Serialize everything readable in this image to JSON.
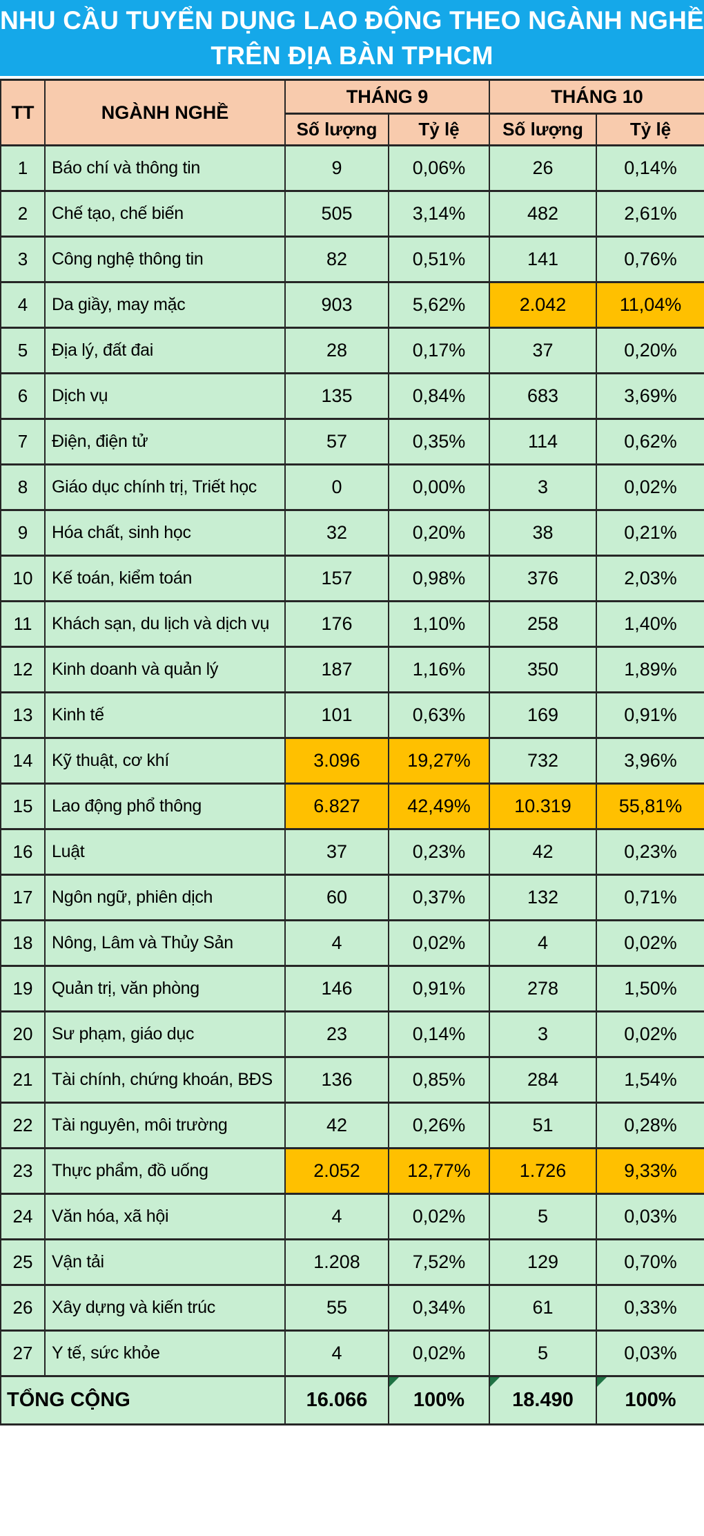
{
  "title": {
    "line1": "NHU CẦU TUYỂN DỤNG LAO ĐỘNG THEO NGÀNH NGHỀ",
    "line2": "TRÊN ĐỊA BÀN TPHCM"
  },
  "colors": {
    "title_bg": "#15A8E9",
    "title_text": "#FFFFFF",
    "header_bg": "#F8CBAD",
    "cell_bg": "#C8EED2",
    "highlight_bg": "#FFC000",
    "border": "#262626",
    "flag_triangle": "#1F7244"
  },
  "table": {
    "headers": {
      "tt": "TT",
      "industry": "NGÀNH NGHỀ",
      "month9": "THÁNG 9",
      "month10": "THÁNG 10",
      "quantity": "Số lượng",
      "rate": "Tỷ lệ"
    },
    "rows": [
      {
        "tt": "1",
        "industry": "Báo chí và thông tin",
        "m9_qty": "9",
        "m9_rate": "0,06%",
        "m10_qty": "26",
        "m10_rate": "0,14%",
        "highlight": []
      },
      {
        "tt": "2",
        "industry": "Chế tạo, chế biến",
        "m9_qty": "505",
        "m9_rate": "3,14%",
        "m10_qty": "482",
        "m10_rate": "2,61%",
        "highlight": []
      },
      {
        "tt": "3",
        "industry": "Công nghệ thông tin",
        "m9_qty": "82",
        "m9_rate": "0,51%",
        "m10_qty": "141",
        "m10_rate": "0,76%",
        "highlight": []
      },
      {
        "tt": "4",
        "industry": "Da giầy, may mặc",
        "m9_qty": "903",
        "m9_rate": "5,62%",
        "m10_qty": "2.042",
        "m10_rate": "11,04%",
        "highlight": [
          "m10_qty",
          "m10_rate"
        ]
      },
      {
        "tt": "5",
        "industry": "Địa lý, đất đai",
        "m9_qty": "28",
        "m9_rate": "0,17%",
        "m10_qty": "37",
        "m10_rate": "0,20%",
        "highlight": []
      },
      {
        "tt": "6",
        "industry": "Dịch vụ",
        "m9_qty": "135",
        "m9_rate": "0,84%",
        "m10_qty": "683",
        "m10_rate": "3,69%",
        "highlight": []
      },
      {
        "tt": "7",
        "industry": "Điện, điện tử",
        "m9_qty": "57",
        "m9_rate": "0,35%",
        "m10_qty": "114",
        "m10_rate": "0,62%",
        "highlight": []
      },
      {
        "tt": "8",
        "industry": "Giáo dục chính trị, Triết học",
        "m9_qty": "0",
        "m9_rate": "0,00%",
        "m10_qty": "3",
        "m10_rate": "0,02%",
        "highlight": []
      },
      {
        "tt": "9",
        "industry": "Hóa chất, sinh học",
        "m9_qty": "32",
        "m9_rate": "0,20%",
        "m10_qty": "38",
        "m10_rate": "0,21%",
        "highlight": []
      },
      {
        "tt": "10",
        "industry": "Kế toán, kiểm toán",
        "m9_qty": "157",
        "m9_rate": "0,98%",
        "m10_qty": "376",
        "m10_rate": "2,03%",
        "highlight": []
      },
      {
        "tt": "11",
        "industry": "Khách sạn, du lịch và dịch vụ",
        "m9_qty": "176",
        "m9_rate": "1,10%",
        "m10_qty": "258",
        "m10_rate": "1,40%",
        "highlight": []
      },
      {
        "tt": "12",
        "industry": "Kinh doanh và quản lý",
        "m9_qty": "187",
        "m9_rate": "1,16%",
        "m10_qty": "350",
        "m10_rate": "1,89%",
        "highlight": []
      },
      {
        "tt": "13",
        "industry": "Kinh tế",
        "m9_qty": "101",
        "m9_rate": "0,63%",
        "m10_qty": "169",
        "m10_rate": "0,91%",
        "highlight": []
      },
      {
        "tt": "14",
        "industry": "Kỹ thuật, cơ khí",
        "m9_qty": "3.096",
        "m9_rate": "19,27%",
        "m10_qty": "732",
        "m10_rate": "3,96%",
        "highlight": [
          "m9_qty",
          "m9_rate"
        ]
      },
      {
        "tt": "15",
        "industry": "Lao động phổ thông",
        "m9_qty": "6.827",
        "m9_rate": "42,49%",
        "m10_qty": "10.319",
        "m10_rate": "55,81%",
        "highlight": [
          "m9_qty",
          "m9_rate",
          "m10_qty",
          "m10_rate"
        ]
      },
      {
        "tt": "16",
        "industry": "Luật",
        "m9_qty": "37",
        "m9_rate": "0,23%",
        "m10_qty": "42",
        "m10_rate": "0,23%",
        "highlight": []
      },
      {
        "tt": "17",
        "industry": "Ngôn ngữ, phiên dịch",
        "m9_qty": "60",
        "m9_rate": "0,37%",
        "m10_qty": "132",
        "m10_rate": "0,71%",
        "highlight": []
      },
      {
        "tt": "18",
        "industry": "Nông, Lâm và Thủy Sản",
        "m9_qty": "4",
        "m9_rate": "0,02%",
        "m10_qty": "4",
        "m10_rate": "0,02%",
        "highlight": []
      },
      {
        "tt": "19",
        "industry": "Quản trị, văn phòng",
        "m9_qty": "146",
        "m9_rate": "0,91%",
        "m10_qty": "278",
        "m10_rate": "1,50%",
        "highlight": []
      },
      {
        "tt": "20",
        "industry": "Sư phạm, giáo dục",
        "m9_qty": "23",
        "m9_rate": "0,14%",
        "m10_qty": "3",
        "m10_rate": "0,02%",
        "highlight": []
      },
      {
        "tt": "21",
        "industry": "Tài chính, chứng khoán, BĐS",
        "m9_qty": "136",
        "m9_rate": "0,85%",
        "m10_qty": "284",
        "m10_rate": "1,54%",
        "highlight": []
      },
      {
        "tt": "22",
        "industry": "Tài nguyên, môi trường",
        "m9_qty": "42",
        "m9_rate": "0,26%",
        "m10_qty": "51",
        "m10_rate": "0,28%",
        "highlight": []
      },
      {
        "tt": "23",
        "industry": "Thực phẩm, đồ uống",
        "m9_qty": "2.052",
        "m9_rate": "12,77%",
        "m10_qty": "1.726",
        "m10_rate": "9,33%",
        "highlight": [
          "m9_qty",
          "m9_rate",
          "m10_qty",
          "m10_rate"
        ]
      },
      {
        "tt": "24",
        "industry": "Văn hóa, xã hội",
        "m9_qty": "4",
        "m9_rate": "0,02%",
        "m10_qty": "5",
        "m10_rate": "0,03%",
        "highlight": []
      },
      {
        "tt": "25",
        "industry": "Vận tải",
        "m9_qty": "1.208",
        "m9_rate": "7,52%",
        "m10_qty": "129",
        "m10_rate": "0,70%",
        "highlight": []
      },
      {
        "tt": "26",
        "industry": "Xây dựng và kiến trúc",
        "m9_qty": "55",
        "m9_rate": "0,34%",
        "m10_qty": "61",
        "m10_rate": "0,33%",
        "highlight": []
      },
      {
        "tt": "27",
        "industry": "Y tế, sức khỏe",
        "m9_qty": "4",
        "m9_rate": "0,02%",
        "m10_qty": "5",
        "m10_rate": "0,03%",
        "highlight": []
      }
    ],
    "total": {
      "label": "TỔNG CỘNG",
      "m9_qty": "16.066",
      "m9_rate": "100%",
      "m10_qty": "18.490",
      "m10_rate": "100%",
      "flagged": [
        "m9_rate",
        "m10_qty",
        "m10_rate"
      ]
    }
  },
  "chart_data": {
    "type": "table",
    "title": "NHU CẦU TUYỂN DỤNG LAO ĐỘNG THEO NGÀNH NGHỀ TRÊN ĐỊA BÀN TPHCM",
    "columns": [
      "TT",
      "NGÀNH NGHỀ",
      "THÁNG 9 - Số lượng",
      "THÁNG 9 - Tỷ lệ (%)",
      "THÁNG 10 - Số lượng",
      "THÁNG 10 - Tỷ lệ (%)"
    ],
    "rows": [
      [
        1,
        "Báo chí và thông tin",
        9,
        0.06,
        26,
        0.14
      ],
      [
        2,
        "Chế tạo, chế biến",
        505,
        3.14,
        482,
        2.61
      ],
      [
        3,
        "Công nghệ thông tin",
        82,
        0.51,
        141,
        0.76
      ],
      [
        4,
        "Da giầy, may mặc",
        903,
        5.62,
        2042,
        11.04
      ],
      [
        5,
        "Địa lý, đất đai",
        28,
        0.17,
        37,
        0.2
      ],
      [
        6,
        "Dịch vụ",
        135,
        0.84,
        683,
        3.69
      ],
      [
        7,
        "Điện, điện tử",
        57,
        0.35,
        114,
        0.62
      ],
      [
        8,
        "Giáo dục chính trị, Triết học",
        0,
        0.0,
        3,
        0.02
      ],
      [
        9,
        "Hóa chất, sinh học",
        32,
        0.2,
        38,
        0.21
      ],
      [
        10,
        "Kế toán, kiểm toán",
        157,
        0.98,
        376,
        2.03
      ],
      [
        11,
        "Khách sạn, du lịch và dịch vụ",
        176,
        1.1,
        258,
        1.4
      ],
      [
        12,
        "Kinh doanh và quản lý",
        187,
        1.16,
        350,
        1.89
      ],
      [
        13,
        "Kinh tế",
        101,
        0.63,
        169,
        0.91
      ],
      [
        14,
        "Kỹ thuật, cơ khí",
        3096,
        19.27,
        732,
        3.96
      ],
      [
        15,
        "Lao động phổ thông",
        6827,
        42.49,
        10319,
        55.81
      ],
      [
        16,
        "Luật",
        37,
        0.23,
        42,
        0.23
      ],
      [
        17,
        "Ngôn ngữ, phiên dịch",
        60,
        0.37,
        132,
        0.71
      ],
      [
        18,
        "Nông, Lâm và Thủy Sản",
        4,
        0.02,
        4,
        0.02
      ],
      [
        19,
        "Quản trị, văn phòng",
        146,
        0.91,
        278,
        1.5
      ],
      [
        20,
        "Sư phạm, giáo dục",
        23,
        0.14,
        3,
        0.02
      ],
      [
        21,
        "Tài chính, chứng khoán, BĐS",
        136,
        0.85,
        284,
        1.54
      ],
      [
        22,
        "Tài nguyên, môi trường",
        42,
        0.26,
        51,
        0.28
      ],
      [
        23,
        "Thực phẩm, đồ uống",
        2052,
        12.77,
        1726,
        9.33
      ],
      [
        24,
        "Văn hóa, xã hội",
        4,
        0.02,
        5,
        0.03
      ],
      [
        25,
        "Vận tải",
        1208,
        7.52,
        129,
        0.7
      ],
      [
        26,
        "Xây dựng và kiến trúc",
        55,
        0.34,
        61,
        0.33
      ],
      [
        27,
        "Y tế, sức khỏe",
        4,
        0.02,
        5,
        0.03
      ]
    ],
    "totals_row": [
      "TỔNG CỘNG",
      16066,
      100,
      18490,
      100
    ],
    "highlighted_cells": [
      {
        "row": 4,
        "cells": [
          "THÁNG 10 - Số lượng",
          "THÁNG 10 - Tỷ lệ (%)"
        ]
      },
      {
        "row": 14,
        "cells": [
          "THÁNG 9 - Số lượng",
          "THÁNG 9 - Tỷ lệ (%)"
        ]
      },
      {
        "row": 15,
        "cells": [
          "THÁNG 9 - Số lượng",
          "THÁNG 9 - Tỷ lệ (%)",
          "THÁNG 10 - Số lượng",
          "THÁNG 10 - Tỷ lệ (%)"
        ]
      },
      {
        "row": 23,
        "cells": [
          "THÁNG 9 - Số lượng",
          "THÁNG 9 - Tỷ lệ (%)",
          "THÁNG 10 - Số lượng",
          "THÁNG 10 - Tỷ lệ (%)"
        ]
      }
    ]
  }
}
